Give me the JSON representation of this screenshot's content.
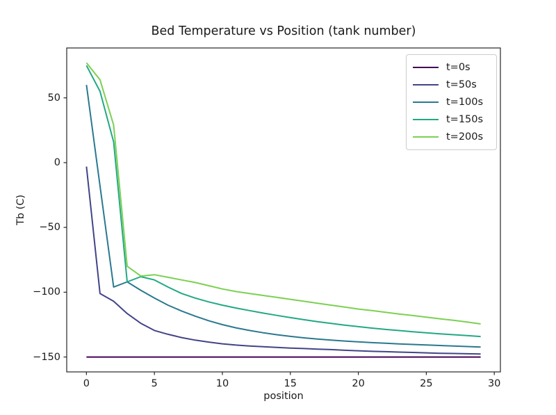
{
  "figure": {
    "background": "#ffffff",
    "text_color": "#1a1a1a",
    "axis_color": "#262626"
  },
  "chart_data": {
    "type": "line",
    "title": "Bed Temperature vs Position (tank number)",
    "xlabel": "position",
    "ylabel": "Tb (C)",
    "grid": false,
    "legend_position": "upper right",
    "xlim": [
      -1.45,
      30.45
    ],
    "ylim": [
      -161.5,
      88.5
    ],
    "xticks": {
      "values": [
        0,
        5,
        10,
        15,
        20,
        25,
        30
      ],
      "labels": [
        "0",
        "5",
        "10",
        "15",
        "20",
        "25",
        "30"
      ]
    },
    "yticks": {
      "values": [
        50,
        0,
        -50,
        -100,
        -150
      ],
      "labels": [
        "50",
        "0",
        "−50",
        "−100",
        "−150"
      ]
    },
    "line_width": 2,
    "x": [
      0,
      1,
      2,
      3,
      4,
      5,
      6,
      7,
      8,
      9,
      10,
      11,
      12,
      13,
      14,
      15,
      16,
      17,
      18,
      19,
      20,
      21,
      22,
      23,
      24,
      25,
      26,
      27,
      28,
      29
    ],
    "series": [
      {
        "name": "t=0s",
        "color": "#440154",
        "values": [
          -150,
          -150,
          -150,
          -150,
          -150,
          -150,
          -150,
          -150,
          -150,
          -150,
          -150,
          -150,
          -150,
          -150,
          -150,
          -150,
          -150,
          -150,
          -150,
          -150,
          -150,
          -150,
          -150,
          -150,
          -150,
          -150,
          -150,
          -150,
          -150,
          -150
        ]
      },
      {
        "name": "t=50s",
        "color": "#414487",
        "values": [
          -3,
          -101,
          -107,
          -116.5,
          -124,
          -129.5,
          -132.5,
          -135,
          -137,
          -138.5,
          -139.8,
          -140.8,
          -141.5,
          -142.1,
          -142.6,
          -143.1,
          -143.5,
          -143.9,
          -144.3,
          -144.8,
          -145.2,
          -145.6,
          -145.9,
          -146.2,
          -146.5,
          -146.8,
          -147.1,
          -147.3,
          -147.5,
          -147.7
        ]
      },
      {
        "name": "t=100s",
        "color": "#2a788e",
        "values": [
          60,
          -18,
          -96,
          -92,
          -98.5,
          -104.5,
          -110,
          -114.5,
          -118.5,
          -122,
          -125,
          -127.5,
          -129.5,
          -131.3,
          -132.8,
          -134.1,
          -135.2,
          -136.2,
          -137,
          -137.7,
          -138.3,
          -138.9,
          -139.4,
          -139.9,
          -140.3,
          -140.7,
          -141.1,
          -141.5,
          -141.9,
          -142.3
        ]
      },
      {
        "name": "t=150s",
        "color": "#22a884",
        "values": [
          75,
          55,
          16,
          -92,
          -88,
          -90.5,
          -96,
          -101,
          -104.5,
          -107.5,
          -110,
          -112.2,
          -114.2,
          -116.1,
          -117.9,
          -119.6,
          -121.2,
          -122.7,
          -124.1,
          -125.4,
          -126.6,
          -127.7,
          -128.7,
          -129.6,
          -130.5,
          -131.3,
          -132.1,
          -132.8,
          -133.5,
          -134.2
        ]
      },
      {
        "name": "t=200s",
        "color": "#7ad151",
        "values": [
          77,
          64,
          29,
          -80,
          -87.5,
          -86.5,
          -88.5,
          -90.5,
          -92.5,
          -95,
          -97.5,
          -99.5,
          -101,
          -102.5,
          -104,
          -105.5,
          -107,
          -108.5,
          -110,
          -111.5,
          -113,
          -114.2,
          -115.5,
          -116.8,
          -118,
          -119.2,
          -120.5,
          -121.7,
          -123,
          -124.5
        ]
      }
    ]
  }
}
